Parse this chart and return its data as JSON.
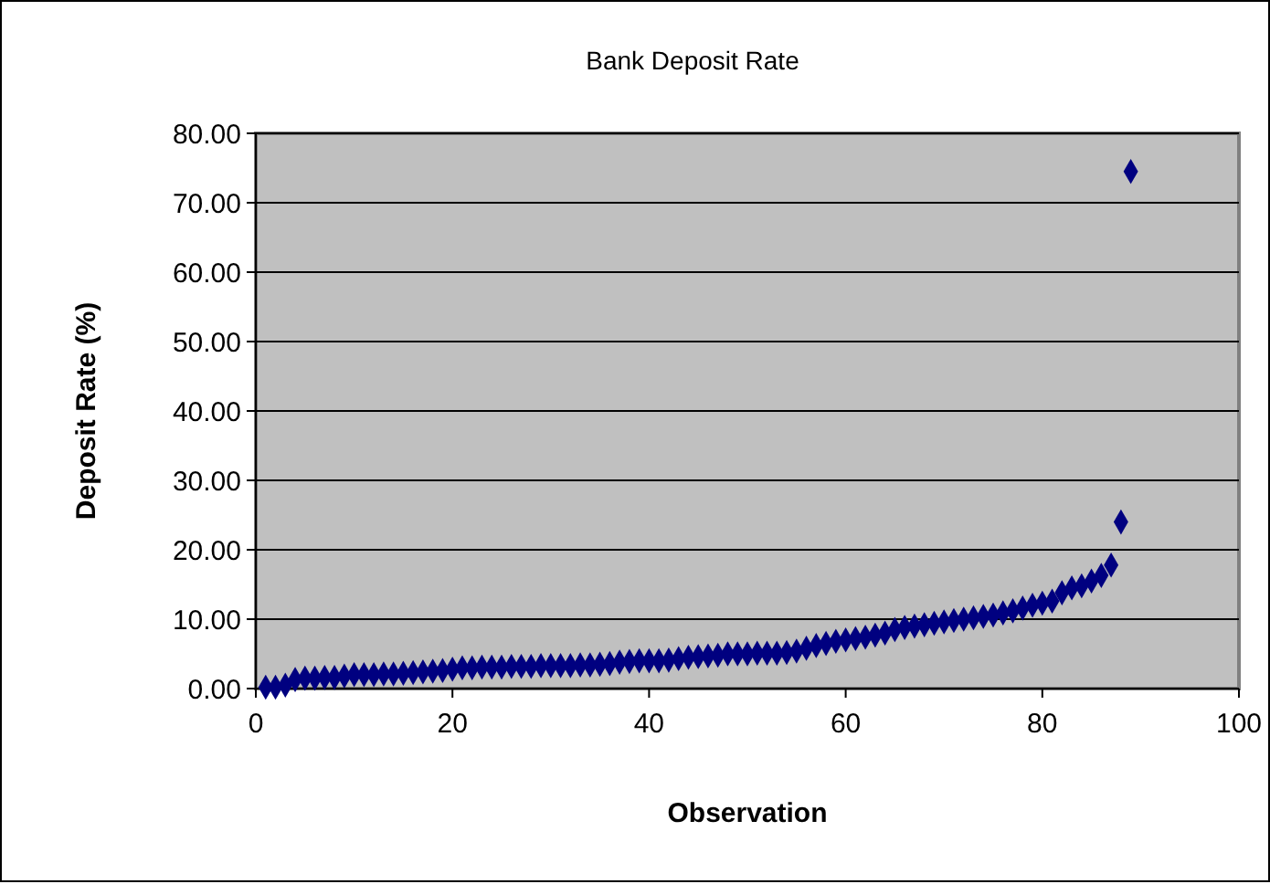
{
  "chart_data": {
    "type": "scatter",
    "title": "Bank Deposit Rate",
    "xlabel": "Observation",
    "ylabel": "Deposit Rate (%)",
    "x": [
      1,
      2,
      3,
      4,
      5,
      6,
      7,
      8,
      9,
      10,
      11,
      12,
      13,
      14,
      15,
      16,
      17,
      18,
      19,
      20,
      21,
      22,
      23,
      24,
      25,
      26,
      27,
      28,
      29,
      30,
      31,
      32,
      33,
      34,
      35,
      36,
      37,
      38,
      39,
      40,
      41,
      42,
      43,
      44,
      45,
      46,
      47,
      48,
      49,
      50,
      51,
      52,
      53,
      54,
      55,
      56,
      57,
      58,
      59,
      60,
      61,
      62,
      63,
      64,
      65,
      66,
      67,
      68,
      69,
      70,
      71,
      72,
      73,
      74,
      75,
      76,
      77,
      78,
      79,
      80,
      81,
      82,
      83,
      84,
      85,
      86,
      87,
      88,
      89
    ],
    "series": [
      {
        "color": "#000080",
        "values": [
          0.2,
          0.2,
          0.5,
          1.3,
          1.5,
          1.5,
          1.6,
          1.6,
          1.8,
          2.0,
          2.0,
          2.0,
          2.1,
          2.1,
          2.2,
          2.3,
          2.4,
          2.5,
          2.6,
          2.8,
          3.0,
          3.0,
          3.1,
          3.1,
          3.1,
          3.2,
          3.2,
          3.2,
          3.3,
          3.3,
          3.3,
          3.3,
          3.4,
          3.4,
          3.5,
          3.6,
          3.8,
          3.9,
          4.0,
          4.0,
          4.0,
          4.1,
          4.3,
          4.5,
          4.6,
          4.7,
          4.8,
          5.0,
          5.0,
          5.0,
          5.1,
          5.1,
          5.1,
          5.2,
          5.4,
          5.8,
          6.2,
          6.5,
          6.8,
          7.0,
          7.2,
          7.4,
          7.7,
          8.0,
          8.5,
          8.8,
          9.0,
          9.2,
          9.4,
          9.6,
          9.8,
          10.0,
          10.2,
          10.4,
          10.6,
          10.9,
          11.2,
          11.6,
          12.0,
          12.3,
          12.6,
          13.8,
          14.5,
          14.8,
          15.5,
          16.3,
          17.8,
          24.0,
          74.5
        ]
      }
    ],
    "xlim": [
      0,
      100
    ],
    "xticks": [
      0,
      20,
      40,
      60,
      80,
      100
    ],
    "ylim": [
      0,
      80
    ],
    "yticks": [
      {
        "value": 0,
        "label": "0.00"
      },
      {
        "value": 10,
        "label": "10.00"
      },
      {
        "value": 20,
        "label": "20.00"
      },
      {
        "value": 30,
        "label": "30.00"
      },
      {
        "value": 40,
        "label": "40.00"
      },
      {
        "value": 50,
        "label": "50.00"
      },
      {
        "value": 60,
        "label": "60.00"
      },
      {
        "value": 70,
        "label": "70.00"
      },
      {
        "value": 80,
        "label": "80.00"
      }
    ],
    "grid": "y",
    "marker": "diamond"
  }
}
